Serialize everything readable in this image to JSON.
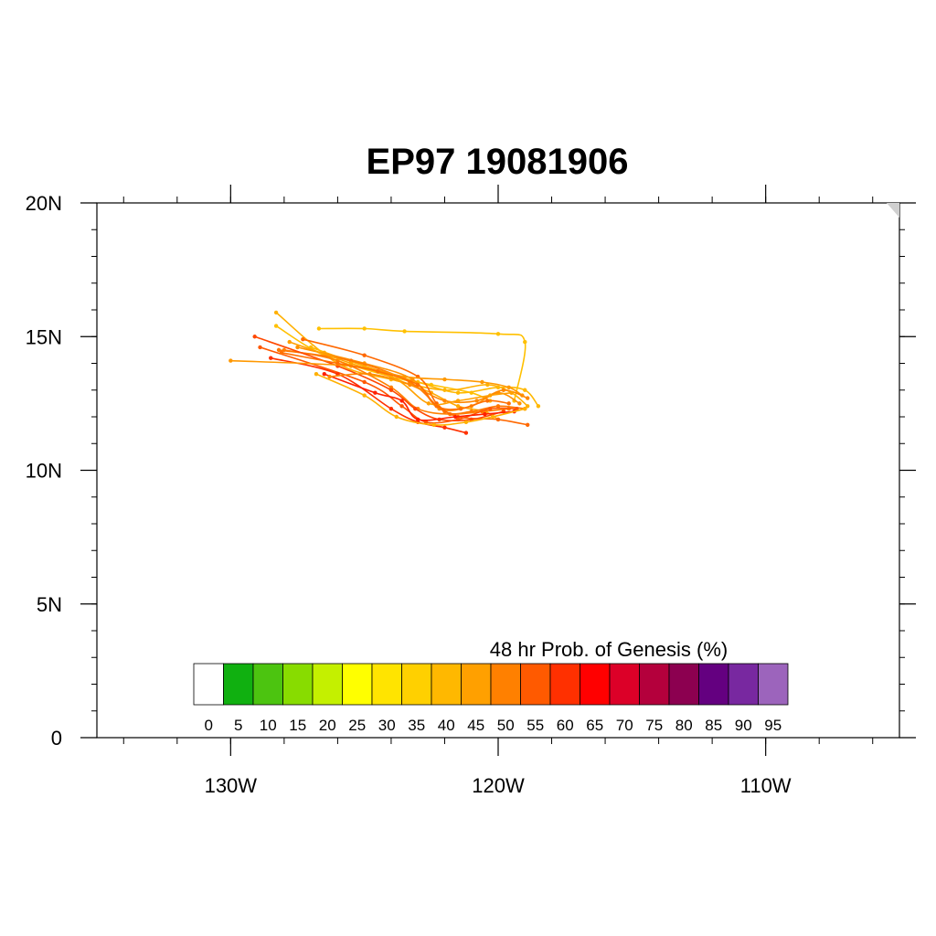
{
  "title": "EP97 19081906",
  "map": {
    "lon_range": [
      -135,
      -105
    ],
    "lat_range": [
      0,
      20
    ],
    "lon_ticks": [
      {
        "value": -130,
        "label": "130W"
      },
      {
        "value": -120,
        "label": "120W"
      },
      {
        "value": -110,
        "label": "110W"
      }
    ],
    "lat_ticks": [
      {
        "value": 0,
        "label": "0"
      },
      {
        "value": 5,
        "label": "5N"
      },
      {
        "value": 10,
        "label": "10N"
      },
      {
        "value": 15,
        "label": "15N"
      },
      {
        "value": 20,
        "label": "20N"
      }
    ],
    "background": "#ffffff"
  },
  "colorbar": {
    "title": "48 hr Prob. of Genesis (%)",
    "colors": [
      "#ffffff",
      "#10b010",
      "#4cc410",
      "#88dc00",
      "#c4f000",
      "#ffff00",
      "#ffe400",
      "#ffd000",
      "#ffb800",
      "#ffa000",
      "#ff8000",
      "#ff5a00",
      "#ff3000",
      "#ff0000",
      "#dc0028",
      "#b4003c",
      "#8c0050",
      "#640080",
      "#7828a0",
      "#9c64bc"
    ],
    "labels": [
      "0",
      "5",
      "10",
      "15",
      "20",
      "25",
      "30",
      "35",
      "40",
      "45",
      "50",
      "55",
      "60",
      "65",
      "70",
      "75",
      "80",
      "85",
      "90",
      "95"
    ]
  },
  "chart_data": {
    "type": "line",
    "title": "EP97 19081906",
    "xlabel": "",
    "ylabel": "",
    "xlim": [
      -135,
      -105
    ],
    "ylim": [
      0,
      20
    ],
    "series": [
      {
        "color": "#ffc000",
        "points": [
          [
            -120.3,
            12.6
          ],
          [
            -121.0,
            12.9
          ],
          [
            -122.5,
            13.2
          ],
          [
            -124.0,
            13.5
          ],
          [
            -126.5,
            14.3
          ],
          [
            -128.3,
            15.4
          ]
        ]
      },
      {
        "color": "#ffb000",
        "points": [
          [
            -118.9,
            12.4
          ],
          [
            -119.5,
            12.9
          ],
          [
            -120.4,
            13.2
          ],
          [
            -122.0,
            13.0
          ],
          [
            -124.0,
            13.4
          ],
          [
            -126.0,
            14.0
          ],
          [
            -128.3,
            15.9
          ]
        ]
      },
      {
        "color": "#ffb800",
        "points": [
          [
            -118.5,
            12.4
          ],
          [
            -119.0,
            13.0
          ],
          [
            -120.0,
            13.1
          ],
          [
            -121.5,
            12.9
          ],
          [
            -123.0,
            13.3
          ],
          [
            -125.0,
            13.9
          ],
          [
            -127.0,
            14.6
          ]
        ]
      },
      {
        "color": "#ffc000",
        "points": [
          [
            -119.4,
            12.6
          ],
          [
            -119.0,
            14.8
          ],
          [
            -120.0,
            15.1
          ],
          [
            -123.5,
            15.2
          ],
          [
            -125.0,
            15.3
          ],
          [
            -126.7,
            15.3
          ]
        ]
      },
      {
        "color": "#ffa800",
        "points": [
          [
            -120.0,
            11.9
          ],
          [
            -120.5,
            12.2
          ],
          [
            -121.5,
            12.4
          ],
          [
            -122.5,
            12.9
          ],
          [
            -123.3,
            13.2
          ],
          [
            -125.0,
            13.9
          ],
          [
            -126.5,
            14.4
          ]
        ]
      },
      {
        "color": "#ff9000",
        "points": [
          [
            -119.2,
            12.5
          ],
          [
            -120.0,
            12.9
          ],
          [
            -121.0,
            12.4
          ],
          [
            -122.2,
            12.3
          ],
          [
            -123.2,
            13.4
          ],
          [
            -125.0,
            14.0
          ],
          [
            -127.5,
            14.6
          ]
        ]
      },
      {
        "color": "#ff8000",
        "points": [
          [
            -119.6,
            12.3
          ],
          [
            -120.6,
            12.2
          ],
          [
            -121.8,
            12.1
          ],
          [
            -123.0,
            12.3
          ],
          [
            -124.0,
            13.1
          ],
          [
            -126.0,
            14.1
          ],
          [
            -128.0,
            14.5
          ]
        ]
      },
      {
        "color": "#ff7800",
        "points": [
          [
            -119.0,
            12.3
          ],
          [
            -120.0,
            12.4
          ],
          [
            -121.0,
            12.2
          ],
          [
            -122.0,
            12.2
          ],
          [
            -123.3,
            13.3
          ],
          [
            -125.5,
            14.1
          ],
          [
            -128.2,
            14.5
          ]
        ]
      },
      {
        "color": "#ff6800",
        "points": [
          [
            -118.9,
            11.7
          ],
          [
            -120.0,
            11.9
          ],
          [
            -121.5,
            12.0
          ],
          [
            -122.3,
            12.5
          ],
          [
            -123.0,
            13.5
          ],
          [
            -125.0,
            14.3
          ],
          [
            -127.3,
            14.9
          ]
        ]
      },
      {
        "color": "#ff5800",
        "points": [
          [
            -119.3,
            12.3
          ],
          [
            -120.3,
            12.3
          ],
          [
            -121.5,
            11.9
          ],
          [
            -122.7,
            11.8
          ],
          [
            -123.6,
            12.4
          ],
          [
            -125.0,
            13.3
          ],
          [
            -128.9,
            14.6
          ]
        ]
      },
      {
        "color": "#ff4800",
        "points": [
          [
            -119.8,
            12.2
          ],
          [
            -121.0,
            11.9
          ],
          [
            -122.2,
            11.9
          ],
          [
            -123.1,
            12.3
          ],
          [
            -124.0,
            13.0
          ],
          [
            -126.0,
            13.9
          ],
          [
            -129.1,
            15.0
          ]
        ]
      },
      {
        "color": "#ff3000",
        "points": [
          [
            -121.2,
            11.4
          ],
          [
            -122.0,
            11.6
          ],
          [
            -123.0,
            11.8
          ],
          [
            -124.0,
            12.3
          ],
          [
            -126.0,
            13.6
          ],
          [
            -128.5,
            14.2
          ]
        ]
      },
      {
        "color": "#ff2000",
        "points": [
          [
            -119.4,
            12.2
          ],
          [
            -120.5,
            12.1
          ],
          [
            -121.6,
            12.0
          ],
          [
            -123.0,
            11.9
          ],
          [
            -123.6,
            12.6
          ],
          [
            -124.6,
            12.9
          ],
          [
            -126.5,
            13.6
          ]
        ]
      },
      {
        "color": "#ff9800",
        "points": [
          [
            -119.1,
            12.8
          ],
          [
            -119.6,
            13.1
          ],
          [
            -120.6,
            13.3
          ],
          [
            -122.0,
            13.4
          ],
          [
            -123.5,
            13.5
          ],
          [
            -125.5,
            13.9
          ],
          [
            -130.0,
            14.1
          ]
        ]
      },
      {
        "color": "#ff8800",
        "points": [
          [
            -118.9,
            12.7
          ],
          [
            -119.8,
            13.0
          ],
          [
            -120.8,
            12.6
          ],
          [
            -122.0,
            12.6
          ],
          [
            -123.3,
            13.2
          ],
          [
            -124.8,
            13.6
          ],
          [
            -126.3,
            13.5
          ]
        ]
      },
      {
        "color": "#ffa000",
        "points": [
          [
            -119.5,
            12.9
          ],
          [
            -120.3,
            12.8
          ],
          [
            -121.5,
            12.6
          ],
          [
            -122.6,
            12.5
          ],
          [
            -123.8,
            13.4
          ],
          [
            -125.5,
            14.0
          ],
          [
            -127.8,
            14.8
          ]
        ]
      },
      {
        "color": "#ff7000",
        "points": [
          [
            -119.6,
            12.5
          ],
          [
            -120.4,
            12.6
          ],
          [
            -121.4,
            12.3
          ],
          [
            -122.3,
            12.4
          ],
          [
            -123.0,
            13.2
          ],
          [
            -124.5,
            13.7
          ],
          [
            -126.0,
            14.0
          ],
          [
            -128.1,
            14.4
          ]
        ]
      },
      {
        "color": "#ffb000",
        "points": [
          [
            -119.0,
            12.3
          ],
          [
            -120.2,
            12.0
          ],
          [
            -121.2,
            11.8
          ],
          [
            -122.4,
            11.7
          ],
          [
            -123.8,
            12.0
          ],
          [
            -125.0,
            12.8
          ],
          [
            -126.8,
            13.6
          ]
        ]
      }
    ]
  }
}
